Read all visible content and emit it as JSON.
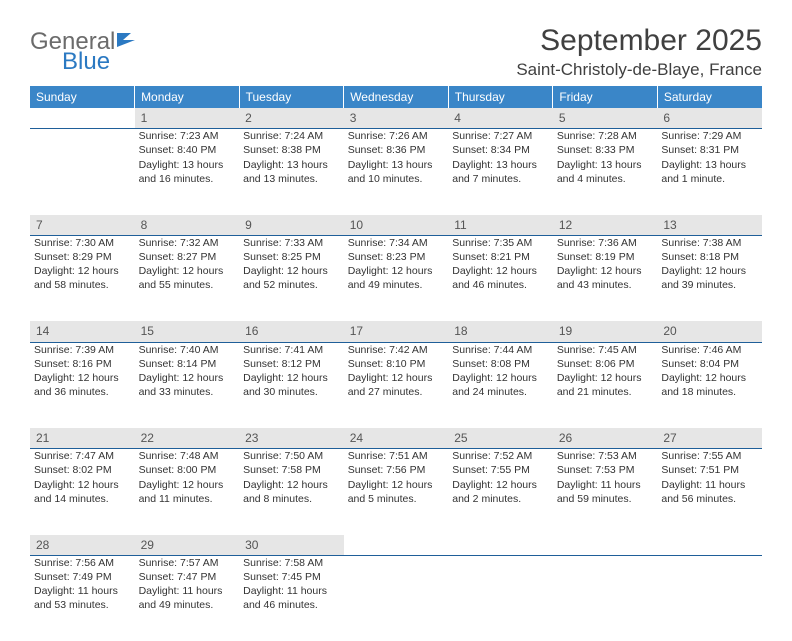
{
  "brand": {
    "part1": "General",
    "part2": "Blue"
  },
  "title": "September 2025",
  "location": "Saint-Christoly-de-Blaye, France",
  "colors": {
    "header_bg": "#3a86c8",
    "header_text": "#ffffff",
    "daynum_bg": "#e6e6e6",
    "daynum_border": "#1f5f99",
    "body_text": "#333333",
    "logo_gray": "#6b6b6b",
    "logo_blue": "#2b79c2"
  },
  "typography": {
    "title_fontsize": 30,
    "location_fontsize": 17,
    "weekday_fontsize": 12,
    "cell_fontsize": 10.5
  },
  "weekdays": [
    "Sunday",
    "Monday",
    "Tuesday",
    "Wednesday",
    "Thursday",
    "Friday",
    "Saturday"
  ],
  "weeks": [
    {
      "nums": [
        "",
        "1",
        "2",
        "3",
        "4",
        "5",
        "6"
      ],
      "cells": [
        [],
        [
          "Sunrise: 7:23 AM",
          "Sunset: 8:40 PM",
          "Daylight: 13 hours",
          "and 16 minutes."
        ],
        [
          "Sunrise: 7:24 AM",
          "Sunset: 8:38 PM",
          "Daylight: 13 hours",
          "and 13 minutes."
        ],
        [
          "Sunrise: 7:26 AM",
          "Sunset: 8:36 PM",
          "Daylight: 13 hours",
          "and 10 minutes."
        ],
        [
          "Sunrise: 7:27 AM",
          "Sunset: 8:34 PM",
          "Daylight: 13 hours",
          "and 7 minutes."
        ],
        [
          "Sunrise: 7:28 AM",
          "Sunset: 8:33 PM",
          "Daylight: 13 hours",
          "and 4 minutes."
        ],
        [
          "Sunrise: 7:29 AM",
          "Sunset: 8:31 PM",
          "Daylight: 13 hours",
          "and 1 minute."
        ]
      ]
    },
    {
      "nums": [
        "7",
        "8",
        "9",
        "10",
        "11",
        "12",
        "13"
      ],
      "cells": [
        [
          "Sunrise: 7:30 AM",
          "Sunset: 8:29 PM",
          "Daylight: 12 hours",
          "and 58 minutes."
        ],
        [
          "Sunrise: 7:32 AM",
          "Sunset: 8:27 PM",
          "Daylight: 12 hours",
          "and 55 minutes."
        ],
        [
          "Sunrise: 7:33 AM",
          "Sunset: 8:25 PM",
          "Daylight: 12 hours",
          "and 52 minutes."
        ],
        [
          "Sunrise: 7:34 AM",
          "Sunset: 8:23 PM",
          "Daylight: 12 hours",
          "and 49 minutes."
        ],
        [
          "Sunrise: 7:35 AM",
          "Sunset: 8:21 PM",
          "Daylight: 12 hours",
          "and 46 minutes."
        ],
        [
          "Sunrise: 7:36 AM",
          "Sunset: 8:19 PM",
          "Daylight: 12 hours",
          "and 43 minutes."
        ],
        [
          "Sunrise: 7:38 AM",
          "Sunset: 8:18 PM",
          "Daylight: 12 hours",
          "and 39 minutes."
        ]
      ]
    },
    {
      "nums": [
        "14",
        "15",
        "16",
        "17",
        "18",
        "19",
        "20"
      ],
      "cells": [
        [
          "Sunrise: 7:39 AM",
          "Sunset: 8:16 PM",
          "Daylight: 12 hours",
          "and 36 minutes."
        ],
        [
          "Sunrise: 7:40 AM",
          "Sunset: 8:14 PM",
          "Daylight: 12 hours",
          "and 33 minutes."
        ],
        [
          "Sunrise: 7:41 AM",
          "Sunset: 8:12 PM",
          "Daylight: 12 hours",
          "and 30 minutes."
        ],
        [
          "Sunrise: 7:42 AM",
          "Sunset: 8:10 PM",
          "Daylight: 12 hours",
          "and 27 minutes."
        ],
        [
          "Sunrise: 7:44 AM",
          "Sunset: 8:08 PM",
          "Daylight: 12 hours",
          "and 24 minutes."
        ],
        [
          "Sunrise: 7:45 AM",
          "Sunset: 8:06 PM",
          "Daylight: 12 hours",
          "and 21 minutes."
        ],
        [
          "Sunrise: 7:46 AM",
          "Sunset: 8:04 PM",
          "Daylight: 12 hours",
          "and 18 minutes."
        ]
      ]
    },
    {
      "nums": [
        "21",
        "22",
        "23",
        "24",
        "25",
        "26",
        "27"
      ],
      "cells": [
        [
          "Sunrise: 7:47 AM",
          "Sunset: 8:02 PM",
          "Daylight: 12 hours",
          "and 14 minutes."
        ],
        [
          "Sunrise: 7:48 AM",
          "Sunset: 8:00 PM",
          "Daylight: 12 hours",
          "and 11 minutes."
        ],
        [
          "Sunrise: 7:50 AM",
          "Sunset: 7:58 PM",
          "Daylight: 12 hours",
          "and 8 minutes."
        ],
        [
          "Sunrise: 7:51 AM",
          "Sunset: 7:56 PM",
          "Daylight: 12 hours",
          "and 5 minutes."
        ],
        [
          "Sunrise: 7:52 AM",
          "Sunset: 7:55 PM",
          "Daylight: 12 hours",
          "and 2 minutes."
        ],
        [
          "Sunrise: 7:53 AM",
          "Sunset: 7:53 PM",
          "Daylight: 11 hours",
          "and 59 minutes."
        ],
        [
          "Sunrise: 7:55 AM",
          "Sunset: 7:51 PM",
          "Daylight: 11 hours",
          "and 56 minutes."
        ]
      ]
    },
    {
      "nums": [
        "28",
        "29",
        "30",
        "",
        "",
        "",
        ""
      ],
      "cells": [
        [
          "Sunrise: 7:56 AM",
          "Sunset: 7:49 PM",
          "Daylight: 11 hours",
          "and 53 minutes."
        ],
        [
          "Sunrise: 7:57 AM",
          "Sunset: 7:47 PM",
          "Daylight: 11 hours",
          "and 49 minutes."
        ],
        [
          "Sunrise: 7:58 AM",
          "Sunset: 7:45 PM",
          "Daylight: 11 hours",
          "and 46 minutes."
        ],
        [],
        [],
        [],
        []
      ]
    }
  ]
}
